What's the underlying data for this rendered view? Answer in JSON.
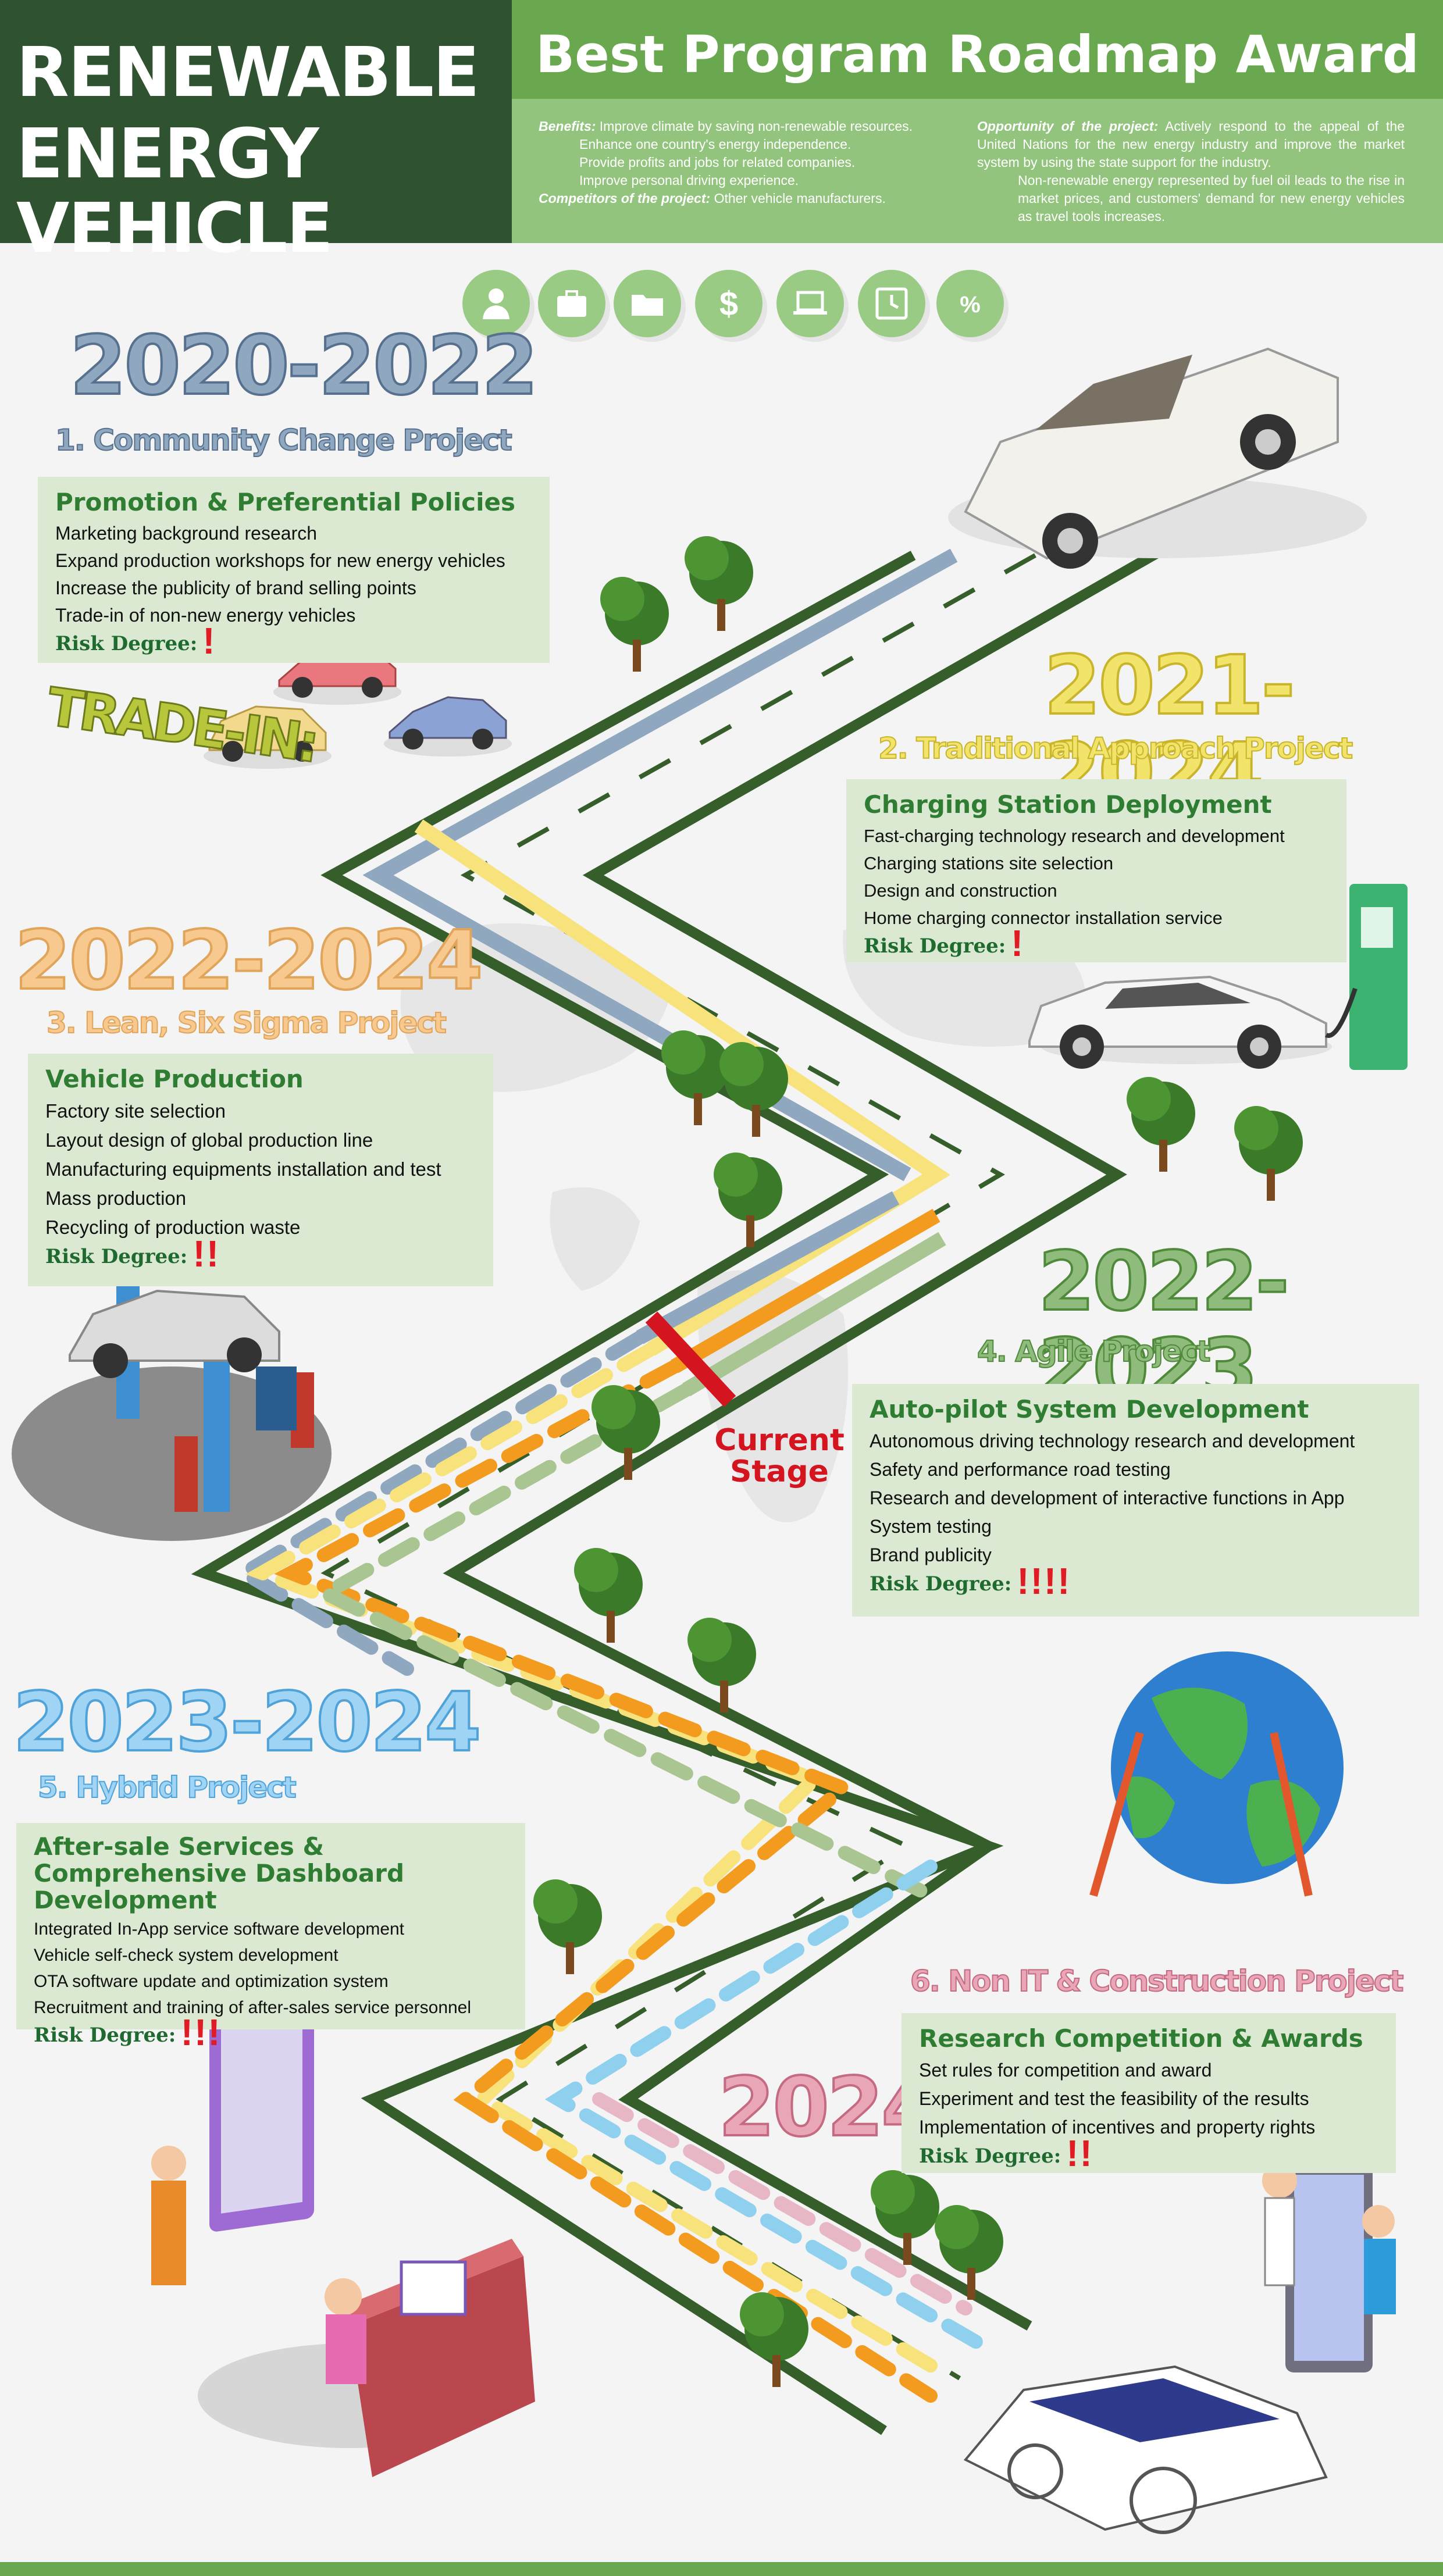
{
  "header": {
    "title_line1": "RENEWABLE",
    "title_line2": "ENERGY VEHICLE",
    "banner": "Best Program Roadmap Award",
    "benefits_label": "Benefits:",
    "benefits": [
      "Improve climate by saving non-renewable resources.",
      "Enhance one country's energy independence.",
      "Provide profits and jobs for related companies.",
      "Improve personal driving experience."
    ],
    "competitors_label": "Competitors of the project:",
    "competitors": "Other vehicle manufacturers.",
    "opportunity_label": "Opportunity of the project:",
    "opportunity_1": "Actively respond to the appeal of the United Nations for the new energy industry and improve the market system by using the state support for the industry.",
    "opportunity_2": "Non-renewable energy represented by fuel oil leads to the rise in market prices, and customers' demand for new energy vehicles as travel tools increases."
  },
  "icons": [
    "person-icon",
    "briefcase-icon",
    "folder-icon",
    "dollar-icon",
    "laptop-icon",
    "clock-icon",
    "percent-icon"
  ],
  "colors": {
    "dark_green": "#2f5230",
    "banner_green": "#6aa84f",
    "light_green": "#93c47d",
    "box_bg": "#dce9d2",
    "risk_red": "#e01b24"
  },
  "projects": [
    {
      "year": "2020-2022",
      "name": "1. Community Change Project",
      "heading": "Promotion & Preferential Policies",
      "items": [
        "Marketing background research",
        "Expand production workshops for new energy vehicles",
        "Increase the publicity of brand selling points",
        "Trade-in of non-new energy vehicles"
      ],
      "risk_label": "Risk Degree:",
      "risk": "!"
    },
    {
      "year": "2021-2024",
      "name": "2. Traditional Approach Project",
      "heading": "Charging Station Deployment",
      "items": [
        "Fast-charging technology research and development",
        "Charging stations site selection",
        "Design and construction",
        "Home charging connector installation service"
      ],
      "risk_label": "Risk Degree:",
      "risk": "!"
    },
    {
      "year": "2022-2024",
      "name": "3. Lean, Six Sigma Project",
      "heading": "Vehicle Production",
      "items": [
        "Factory site selection",
        "Layout design of global production line",
        "Manufacturing equipments installation and test",
        "Mass production",
        "Recycling of production waste"
      ],
      "risk_label": "Risk Degree:",
      "risk": "!!"
    },
    {
      "year": "2022-2023",
      "name": "4. Agile Project",
      "heading": "Auto-pilot System Development",
      "items": [
        "Autonomous driving technology research and development",
        "Safety and performance road testing",
        "Research and development of interactive functions in App",
        "System testing",
        "Brand publicity"
      ],
      "risk_label": "Risk Degree:",
      "risk": "!!!!"
    },
    {
      "year": "2023-2024",
      "name": "5. Hybrid Project",
      "heading": "After-sale Services & Comprehensive Dashboard Development",
      "items": [
        "Integrated In-App service software development",
        "Vehicle self-check system development",
        "OTA software update and optimization system",
        "Recruitment and training of after-sales service personnel"
      ],
      "risk_label": "Risk Degree:",
      "risk": "!!!"
    },
    {
      "year": "2024",
      "name": "6. Non IT & Construction Project",
      "heading": "Research Competition & Awards",
      "items": [
        "Set rules for competition and award",
        "Experiment and test the feasibility of the results",
        "Implementation of incentives and property rights"
      ],
      "risk_label": "Risk Degree:",
      "risk": "!!"
    }
  ],
  "trade_in": "TRADE-IN:",
  "current_stage": "Current Stage"
}
